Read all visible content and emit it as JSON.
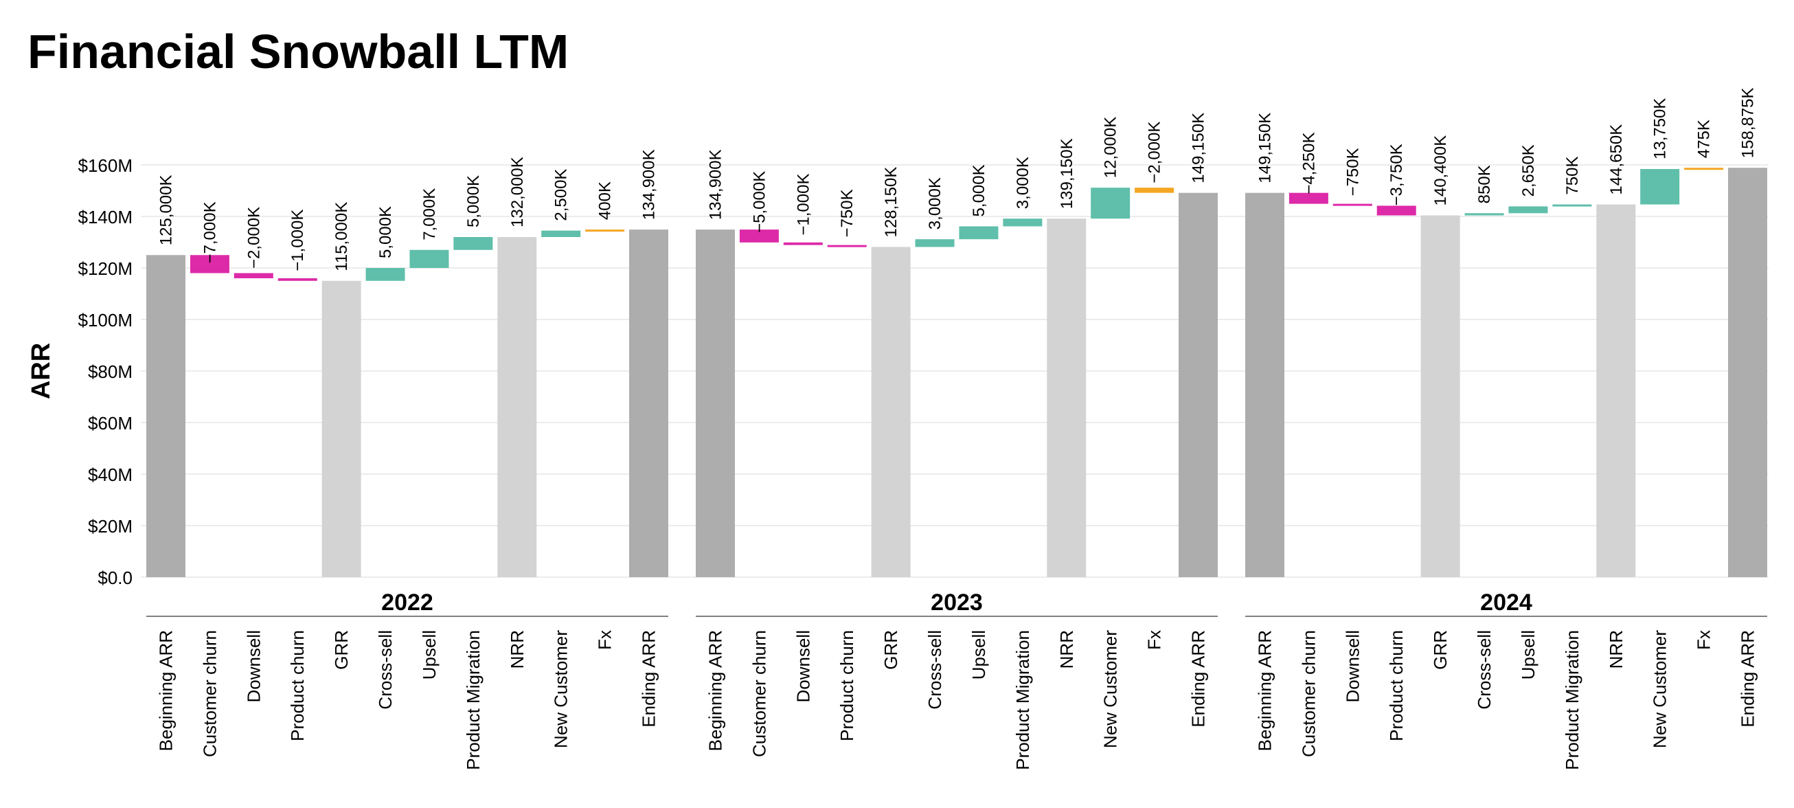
{
  "title": "Financial Snowball LTM",
  "colors": {
    "total_dark": "#adadad",
    "total_light": "#d3d3d3",
    "negative": "#dd2aa8",
    "positive": "#5fbfaa",
    "fx": "#f5a623",
    "grid": "#e6e6e6",
    "axis_line": "#808080"
  },
  "chart_data": {
    "type": "bar",
    "subtype": "waterfall",
    "title": "Financial Snowball LTM",
    "ylabel": "ARR",
    "ylim": [
      0,
      160000
    ],
    "value_units": "K",
    "y_ticks": [
      {
        "value": 0,
        "label": "$0.0"
      },
      {
        "value": 20000,
        "label": "$20M"
      },
      {
        "value": 40000,
        "label": "$40M"
      },
      {
        "value": 60000,
        "label": "$60M"
      },
      {
        "value": 80000,
        "label": "$80M"
      },
      {
        "value": 100000,
        "label": "$100M"
      },
      {
        "value": 120000,
        "label": "$120M"
      },
      {
        "value": 140000,
        "label": "$140M"
      },
      {
        "value": 160000,
        "label": "$160M"
      }
    ],
    "grid": true,
    "categories": [
      "Beginning ARR",
      "Customer churn",
      "Downsell",
      "Product churn",
      "GRR",
      "Cross-sell",
      "Upsell",
      "Product Migration",
      "NRR",
      "New Customer",
      "Fx",
      "Ending ARR"
    ],
    "kinds": [
      "total_dark",
      "delta",
      "delta",
      "delta",
      "total_light",
      "delta",
      "delta",
      "delta",
      "total_light",
      "delta",
      "delta_fx",
      "total_dark"
    ],
    "panels": [
      {
        "year": "2022",
        "values": [
          125000,
          -7000,
          -2000,
          -1000,
          115000,
          5000,
          7000,
          5000,
          132000,
          2500,
          400,
          134900
        ],
        "labels": [
          "125,000K",
          "−7,000K",
          "−2,000K",
          "−1,000K",
          "115,000K",
          "5,000K",
          "7,000K",
          "5,000K",
          "132,000K",
          "2,500K",
          "400K",
          "134,900K"
        ]
      },
      {
        "year": "2023",
        "values": [
          134900,
          -5000,
          -1000,
          -750,
          128150,
          3000,
          5000,
          3000,
          139150,
          12000,
          -2000,
          149150
        ],
        "labels": [
          "134,900K",
          "−5,000K",
          "−1,000K",
          "−750K",
          "128,150K",
          "3,000K",
          "5,000K",
          "3,000K",
          "139,150K",
          "12,000K",
          "−2,000K",
          "149,150K"
        ]
      },
      {
        "year": "2024",
        "values": [
          149150,
          -4250,
          -750,
          -3750,
          140400,
          850,
          2650,
          750,
          144650,
          13750,
          475,
          158875
        ],
        "labels": [
          "149,150K",
          "−4,250K",
          "−750K",
          "−3,750K",
          "140,400K",
          "850K",
          "2,650K",
          "750K",
          "144,650K",
          "13,750K",
          "475K",
          "158,875K"
        ]
      }
    ]
  }
}
